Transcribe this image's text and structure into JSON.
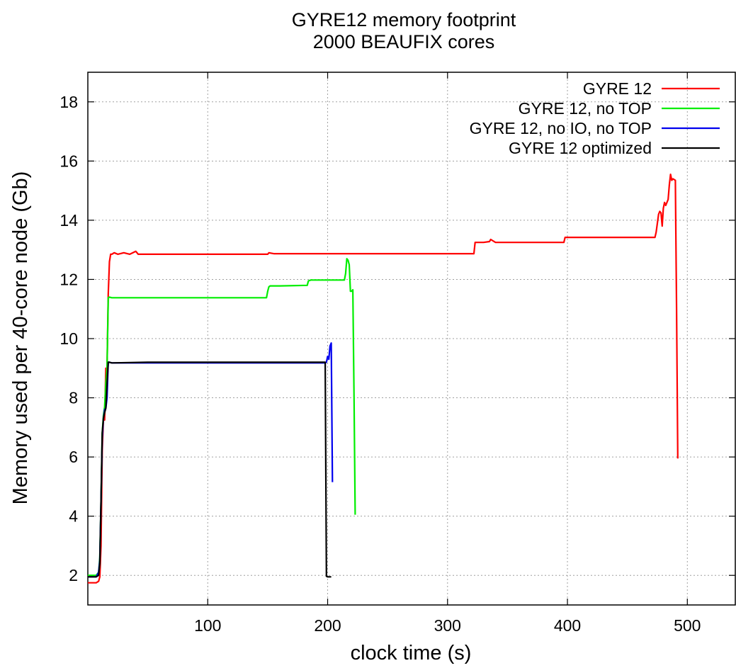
{
  "chart_data": {
    "type": "line",
    "title": "GYRE12 memory footprint",
    "subtitle": "2000 BEAUFIX cores",
    "xlabel": "clock time (s)",
    "ylabel": "Memory used per 40-core node (Gb)",
    "xlim": [
      0,
      540
    ],
    "ylim": [
      1,
      19
    ],
    "xticks": [
      100,
      200,
      300,
      400,
      500
    ],
    "yticks": [
      2,
      4,
      6,
      8,
      10,
      12,
      14,
      16,
      18
    ],
    "grid": true,
    "legend_position": "top-right",
    "series": [
      {
        "name": "GYRE 12",
        "color": "#ff0000",
        "x": [
          0,
          7,
          9,
          10,
          11,
          12,
          13,
          14,
          15,
          16,
          17,
          18,
          19,
          20,
          22,
          25,
          30,
          35,
          40,
          41,
          42,
          60,
          100,
          150,
          151,
          155,
          200,
          250,
          300,
          322,
          323,
          330,
          335,
          336,
          340,
          397,
          398,
          400,
          450,
          473,
          474,
          476,
          477,
          478,
          479,
          480,
          481,
          482,
          484,
          485,
          486,
          487,
          488,
          490,
          491,
          492
        ],
        "y": [
          1.75,
          1.75,
          1.8,
          1.95,
          3.0,
          6.2,
          7.3,
          7.25,
          9.0,
          9.0,
          11.5,
          12.6,
          12.85,
          12.85,
          12.9,
          12.85,
          12.9,
          12.85,
          12.95,
          12.9,
          12.85,
          12.85,
          12.85,
          12.85,
          12.9,
          12.87,
          12.87,
          12.87,
          12.87,
          12.87,
          13.25,
          13.25,
          13.28,
          13.35,
          13.25,
          13.25,
          13.42,
          13.42,
          13.42,
          13.42,
          13.6,
          14.2,
          14.3,
          14.25,
          13.8,
          14.4,
          14.6,
          14.5,
          14.7,
          15.2,
          15.55,
          15.35,
          15.4,
          15.35,
          11.0,
          5.95
        ]
      },
      {
        "name": "GYRE 12, no TOP",
        "color": "#00ee00",
        "x": [
          0,
          7,
          9,
          10,
          11,
          12,
          13,
          14,
          15,
          16,
          17,
          18,
          20,
          50,
          100,
          149,
          150,
          151,
          152,
          160,
          183,
          184,
          186,
          200,
          214,
          215,
          216,
          217,
          218,
          219,
          220,
          221,
          222,
          223
        ],
        "y": [
          2.0,
          2.0,
          2.1,
          2.6,
          4.5,
          6.8,
          7.4,
          7.7,
          8.5,
          9.0,
          11.38,
          11.4,
          11.38,
          11.38,
          11.38,
          11.38,
          11.6,
          11.75,
          11.78,
          11.78,
          11.8,
          11.95,
          11.98,
          11.98,
          11.98,
          12.2,
          12.7,
          12.65,
          12.5,
          11.6,
          11.6,
          11.65,
          8.0,
          4.05
        ]
      },
      {
        "name": "GYRE 12, no IO, no TOP",
        "color": "#0000ee",
        "x": [
          0,
          7,
          9,
          10,
          11,
          12,
          13,
          14,
          15,
          16,
          17,
          18,
          20,
          50,
          100,
          150,
          198,
          199,
          200,
          201,
          202,
          203,
          204
        ],
        "y": [
          1.95,
          1.95,
          2.1,
          2.5,
          4.5,
          6.6,
          7.3,
          7.6,
          7.65,
          8.0,
          9.2,
          9.2,
          9.18,
          9.18,
          9.18,
          9.18,
          9.18,
          9.2,
          9.4,
          9.3,
          9.75,
          9.85,
          5.15
        ]
      },
      {
        "name": "GYRE 12 optimized",
        "color": "#000000",
        "x": [
          0,
          7,
          9,
          10,
          11,
          12,
          13,
          14,
          15,
          16,
          17,
          18,
          20,
          50,
          100,
          150,
          197,
          198,
          199,
          200,
          202,
          203
        ],
        "y": [
          1.95,
          1.95,
          2.0,
          2.4,
          4.5,
          6.8,
          7.3,
          7.5,
          7.65,
          8.5,
          9.2,
          9.2,
          9.18,
          9.2,
          9.2,
          9.2,
          9.2,
          9.2,
          1.97,
          1.95,
          1.95,
          1.95
        ]
      }
    ]
  }
}
